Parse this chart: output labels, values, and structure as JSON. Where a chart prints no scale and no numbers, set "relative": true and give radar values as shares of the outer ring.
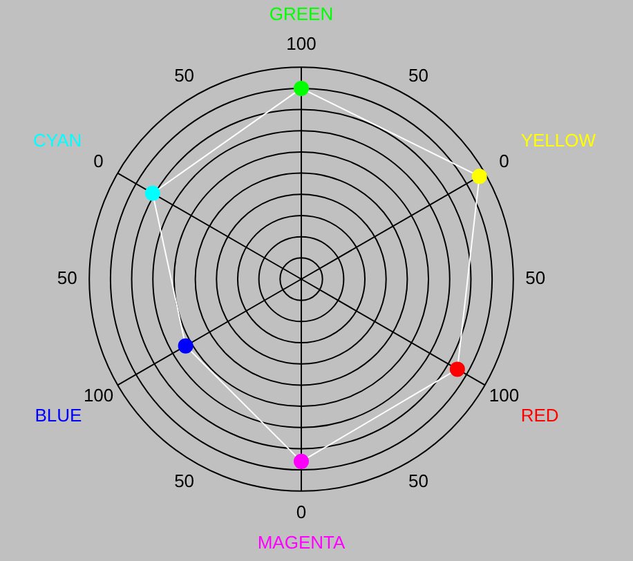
{
  "chart_data": {
    "type": "radar",
    "relative": true,
    "categories": [
      "GREEN",
      "YELLOW",
      "RED",
      "MAGENTA",
      "BLUE",
      "CYAN"
    ],
    "series": [
      {
        "color": "#ffffff",
        "colors": [
          "#00ff00",
          "#ffff00",
          "#ff0000",
          "#ff00ff",
          "#0000ff",
          "#00ffff"
        ],
        "values": [
          0.9,
          0.97,
          0.85,
          0.86,
          0.63,
          0.81
        ]
      }
    ],
    "annotations": [
      "100",
      "50",
      "0",
      "50",
      "100",
      "50",
      "0",
      "50",
      "100",
      "50",
      "0",
      "50"
    ],
    "marker": "circle",
    "legend": false,
    "grid": true
  }
}
